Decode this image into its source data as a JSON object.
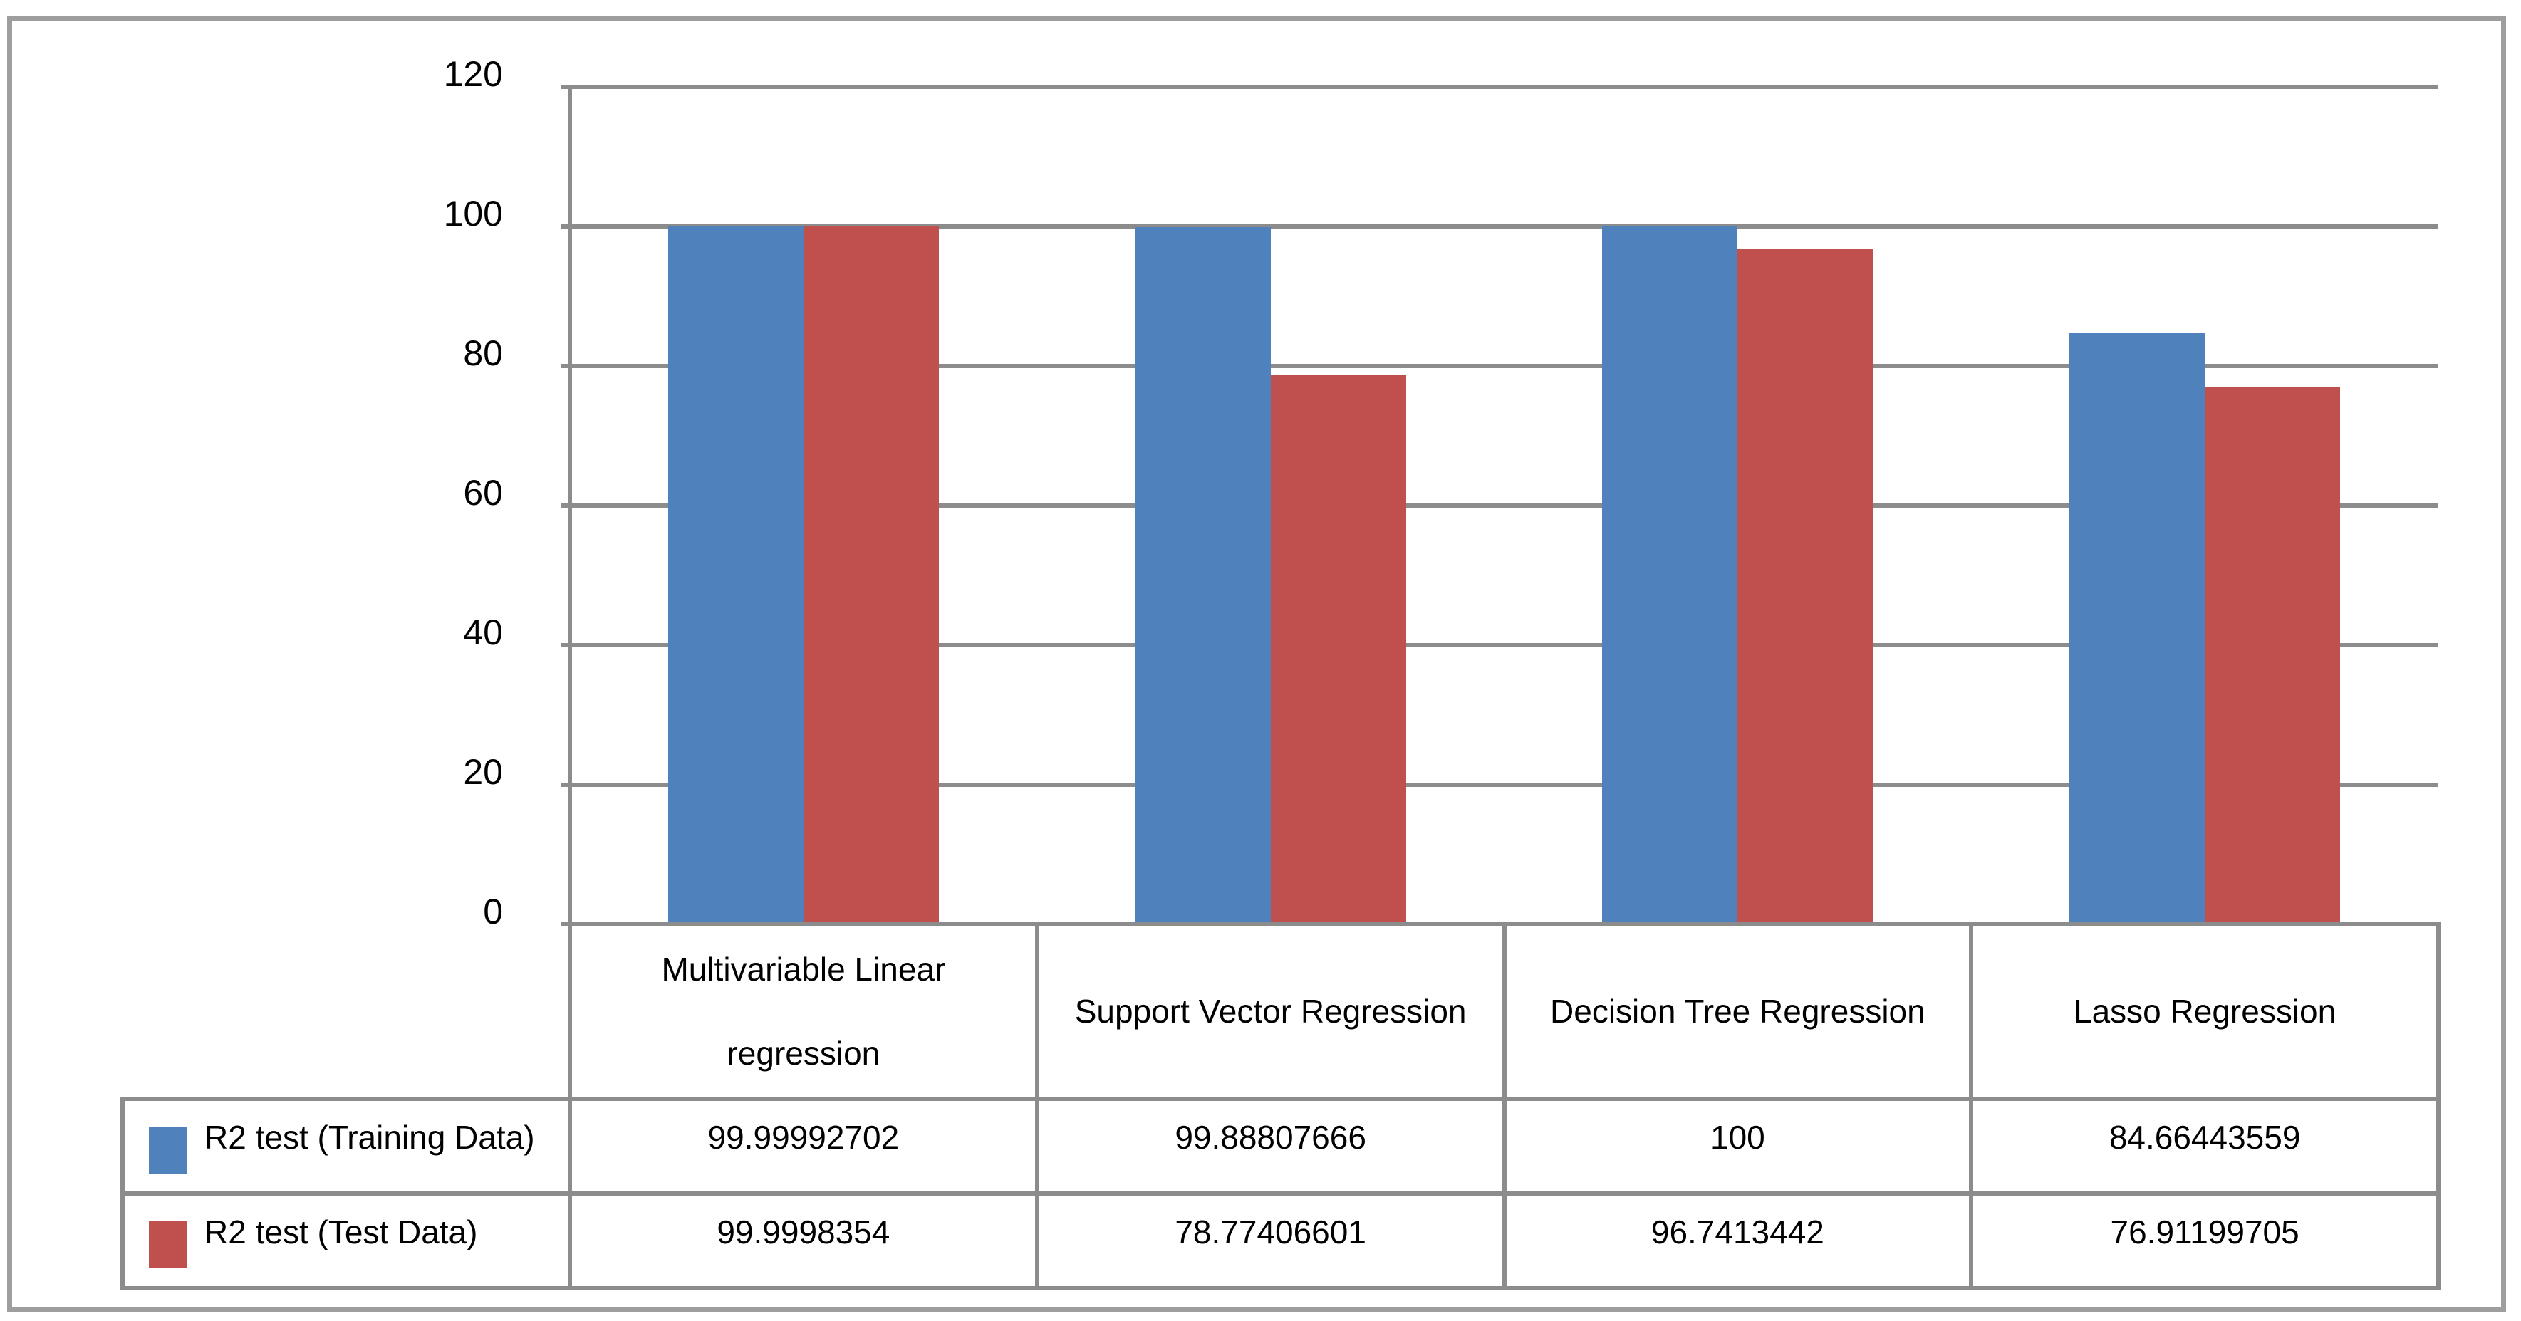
{
  "colors": {
    "series_training": "#4F81BD",
    "series_test": "#C0504D",
    "grid_line": "#8c8c8c",
    "table_border": "#8c8c8c",
    "outer_border": "#9e9e9e",
    "text": "#000000",
    "background": "#ffffff"
  },
  "chart_data": {
    "type": "bar",
    "title": "",
    "xlabel": "",
    "ylabel": "",
    "ylim": [
      0,
      120
    ],
    "yticks": [
      120,
      100,
      80,
      60,
      40,
      20,
      0
    ],
    "grid": true,
    "legend_position": "left-of-data-table",
    "categories": [
      "Multivariable Linear\nregression",
      "Support Vector Regression",
      "Decision Tree Regression",
      "Lasso Regression"
    ],
    "series": [
      {
        "name": "R2 test (Training Data)",
        "color": "#4F81BD",
        "values": [
          99.99992702,
          99.88807666,
          100,
          84.66443559
        ]
      },
      {
        "name": "R2 test (Test Data)",
        "color": "#C0504D",
        "values": [
          99.9998354,
          78.77406601,
          96.7413442,
          76.91199705
        ]
      }
    ]
  }
}
